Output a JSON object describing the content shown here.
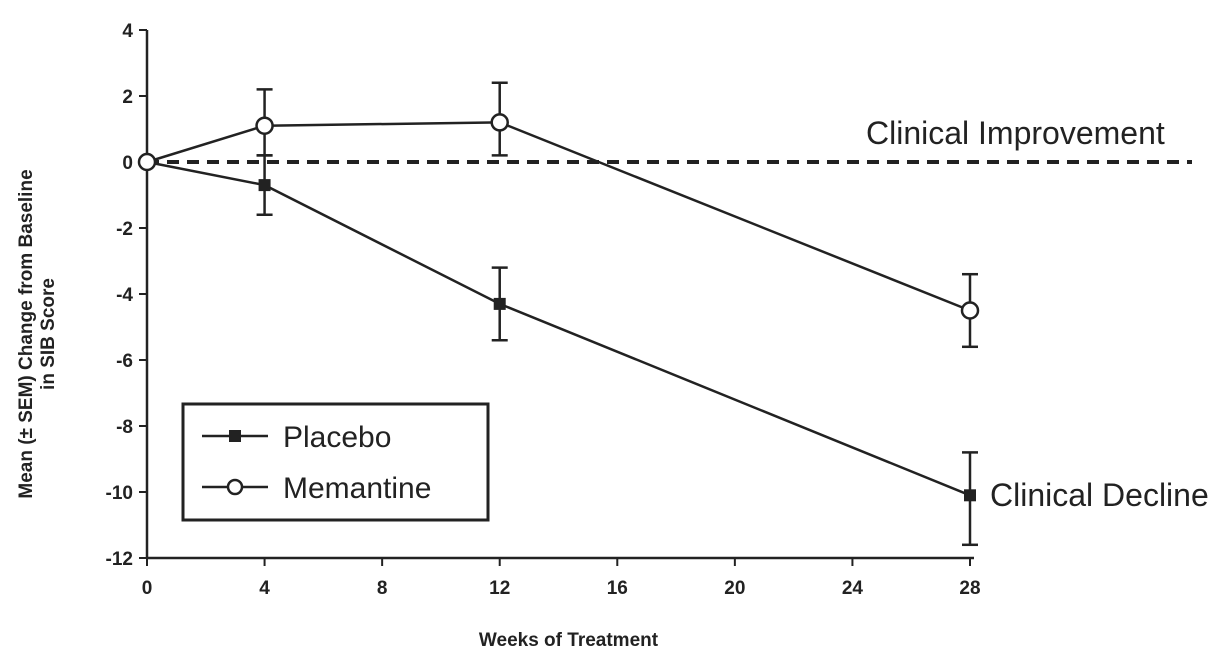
{
  "chart_data": {
    "type": "line",
    "title": "",
    "xlabel": "Weeks of Treatment",
    "ylabel_lines": [
      "Mean (± SEM) Change from Baseline",
      "in SIB Score"
    ],
    "xlim": [
      0,
      28
    ],
    "ylim": [
      -12,
      4
    ],
    "xticks": [
      "0",
      "4",
      "8",
      "12",
      "16",
      "20",
      "24",
      "28"
    ],
    "yticks": [
      "4",
      "2",
      "0",
      "-2",
      "-4",
      "-6",
      "-8",
      "-10",
      "-12"
    ],
    "grid": false,
    "legend_position": "bottom-left",
    "reference_line": {
      "y": 0,
      "style": "dashed"
    },
    "series": [
      {
        "name": "Placebo",
        "marker": "filled-square",
        "x": [
          0,
          4,
          12,
          28
        ],
        "y": [
          0,
          -0.7,
          -4.3,
          -10.1
        ],
        "err_low": [
          0,
          -1.6,
          -5.4,
          -11.6
        ],
        "err_high": [
          0,
          0.2,
          -3.2,
          -8.8
        ]
      },
      {
        "name": "Memantine",
        "marker": "open-circle",
        "x": [
          0,
          4,
          12,
          28
        ],
        "y": [
          0,
          1.1,
          1.2,
          -4.5
        ],
        "err_low": [
          0,
          0.2,
          0.2,
          -5.6
        ],
        "err_high": [
          0,
          2.2,
          2.4,
          -3.4
        ]
      }
    ],
    "annotations": [
      {
        "text": "Clinical Improvement"
      },
      {
        "text": "Clinical Decline"
      }
    ]
  }
}
